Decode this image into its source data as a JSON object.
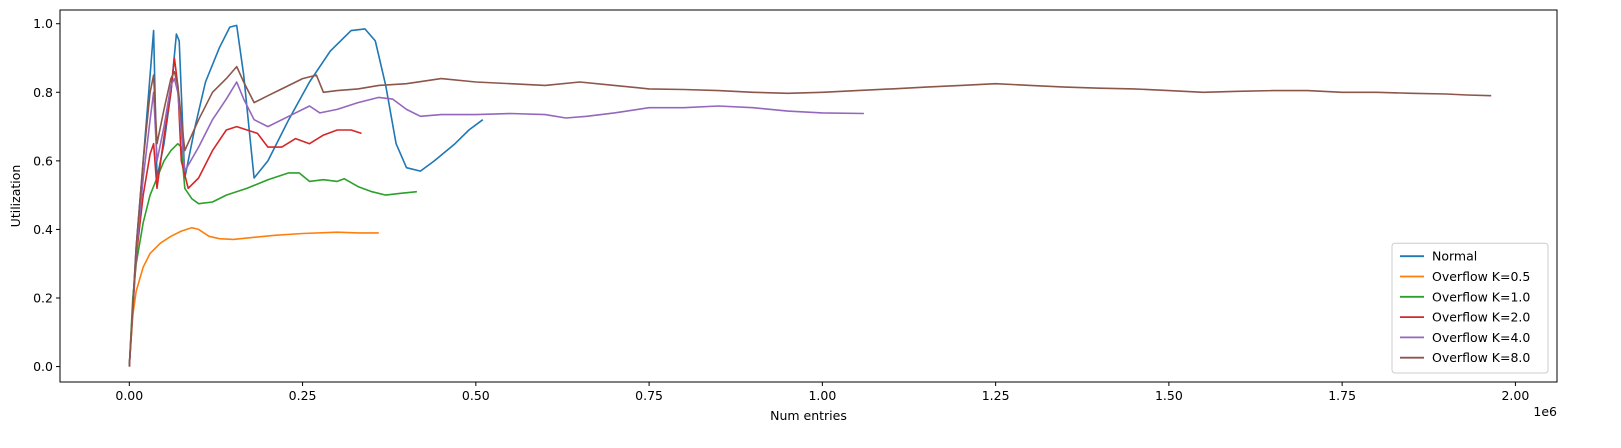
{
  "chart_data": {
    "type": "line",
    "title": "",
    "xlabel": "Num entries",
    "ylabel": "Utilization",
    "x_offset_label": "1e6",
    "xlim": [
      -0.1,
      2.06
    ],
    "ylim": [
      -0.045,
      1.04
    ],
    "x_ticks": [
      0.0,
      0.25,
      0.5,
      0.75,
      1.0,
      1.25,
      1.5,
      1.75,
      2.0
    ],
    "x_tick_labels": [
      "0.00",
      "0.25",
      "0.50",
      "0.75",
      "1.00",
      "1.25",
      "1.50",
      "1.75",
      "2.00"
    ],
    "y_ticks": [
      0.0,
      0.2,
      0.4,
      0.6,
      0.8,
      1.0
    ],
    "y_tick_labels": [
      "0.0",
      "0.2",
      "0.4",
      "0.6",
      "0.8",
      "1.0"
    ],
    "grid": false,
    "legend_position": "lower-right",
    "series": [
      {
        "name": "Normal",
        "color": "#1f77b4",
        "points": [
          [
            0.0,
            0.0
          ],
          [
            0.01,
            0.35
          ],
          [
            0.02,
            0.6
          ],
          [
            0.03,
            0.85
          ],
          [
            0.035,
            0.98
          ],
          [
            0.04,
            0.55
          ],
          [
            0.05,
            0.65
          ],
          [
            0.06,
            0.8
          ],
          [
            0.068,
            0.97
          ],
          [
            0.072,
            0.95
          ],
          [
            0.08,
            0.55
          ],
          [
            0.095,
            0.7
          ],
          [
            0.11,
            0.83
          ],
          [
            0.13,
            0.93
          ],
          [
            0.145,
            0.99
          ],
          [
            0.155,
            0.995
          ],
          [
            0.165,
            0.85
          ],
          [
            0.175,
            0.65
          ],
          [
            0.18,
            0.55
          ],
          [
            0.2,
            0.6
          ],
          [
            0.23,
            0.72
          ],
          [
            0.26,
            0.83
          ],
          [
            0.29,
            0.92
          ],
          [
            0.32,
            0.98
          ],
          [
            0.34,
            0.985
          ],
          [
            0.355,
            0.95
          ],
          [
            0.37,
            0.82
          ],
          [
            0.385,
            0.65
          ],
          [
            0.4,
            0.58
          ],
          [
            0.42,
            0.57
          ],
          [
            0.44,
            0.6
          ],
          [
            0.47,
            0.65
          ],
          [
            0.49,
            0.69
          ],
          [
            0.51,
            0.72
          ]
        ]
      },
      {
        "name": "Overflow K=0.5",
        "color": "#ff7f0e",
        "points": [
          [
            0.0,
            0.0
          ],
          [
            0.005,
            0.15
          ],
          [
            0.01,
            0.22
          ],
          [
            0.02,
            0.29
          ],
          [
            0.03,
            0.33
          ],
          [
            0.045,
            0.36
          ],
          [
            0.06,
            0.38
          ],
          [
            0.075,
            0.395
          ],
          [
            0.09,
            0.405
          ],
          [
            0.1,
            0.4
          ],
          [
            0.115,
            0.38
          ],
          [
            0.13,
            0.373
          ],
          [
            0.15,
            0.371
          ],
          [
            0.18,
            0.377
          ],
          [
            0.21,
            0.383
          ],
          [
            0.25,
            0.388
          ],
          [
            0.3,
            0.392
          ],
          [
            0.33,
            0.39
          ],
          [
            0.36,
            0.39
          ]
        ]
      },
      {
        "name": "Overflow K=1.0",
        "color": "#2ca02c",
        "points": [
          [
            0.0,
            0.0
          ],
          [
            0.005,
            0.2
          ],
          [
            0.01,
            0.3
          ],
          [
            0.02,
            0.42
          ],
          [
            0.03,
            0.5
          ],
          [
            0.04,
            0.55
          ],
          [
            0.05,
            0.6
          ],
          [
            0.06,
            0.63
          ],
          [
            0.07,
            0.65
          ],
          [
            0.075,
            0.64
          ],
          [
            0.08,
            0.52
          ],
          [
            0.09,
            0.49
          ],
          [
            0.1,
            0.475
          ],
          [
            0.12,
            0.48
          ],
          [
            0.14,
            0.5
          ],
          [
            0.17,
            0.52
          ],
          [
            0.2,
            0.545
          ],
          [
            0.23,
            0.565
          ],
          [
            0.245,
            0.565
          ],
          [
            0.26,
            0.54
          ],
          [
            0.28,
            0.545
          ],
          [
            0.3,
            0.54
          ],
          [
            0.31,
            0.548
          ],
          [
            0.33,
            0.525
          ],
          [
            0.35,
            0.51
          ],
          [
            0.37,
            0.5
          ],
          [
            0.39,
            0.505
          ],
          [
            0.415,
            0.51
          ]
        ]
      },
      {
        "name": "Overflow K=2.0",
        "color": "#d62728",
        "points": [
          [
            0.0,
            0.0
          ],
          [
            0.01,
            0.32
          ],
          [
            0.02,
            0.5
          ],
          [
            0.03,
            0.62
          ],
          [
            0.035,
            0.65
          ],
          [
            0.04,
            0.52
          ],
          [
            0.05,
            0.67
          ],
          [
            0.06,
            0.8
          ],
          [
            0.065,
            0.9
          ],
          [
            0.07,
            0.82
          ],
          [
            0.075,
            0.6
          ],
          [
            0.085,
            0.52
          ],
          [
            0.1,
            0.55
          ],
          [
            0.12,
            0.63
          ],
          [
            0.14,
            0.69
          ],
          [
            0.155,
            0.7
          ],
          [
            0.17,
            0.69
          ],
          [
            0.185,
            0.68
          ],
          [
            0.2,
            0.64
          ],
          [
            0.22,
            0.64
          ],
          [
            0.24,
            0.665
          ],
          [
            0.26,
            0.65
          ],
          [
            0.28,
            0.675
          ],
          [
            0.3,
            0.69
          ],
          [
            0.32,
            0.69
          ],
          [
            0.335,
            0.68
          ]
        ]
      },
      {
        "name": "Overflow K=4.0",
        "color": "#9467bd",
        "points": [
          [
            0.0,
            0.0
          ],
          [
            0.01,
            0.33
          ],
          [
            0.02,
            0.55
          ],
          [
            0.03,
            0.72
          ],
          [
            0.035,
            0.8
          ],
          [
            0.04,
            0.6
          ],
          [
            0.05,
            0.7
          ],
          [
            0.06,
            0.82
          ],
          [
            0.065,
            0.84
          ],
          [
            0.07,
            0.8
          ],
          [
            0.08,
            0.57
          ],
          [
            0.1,
            0.64
          ],
          [
            0.12,
            0.72
          ],
          [
            0.14,
            0.78
          ],
          [
            0.155,
            0.83
          ],
          [
            0.165,
            0.78
          ],
          [
            0.18,
            0.72
          ],
          [
            0.2,
            0.7
          ],
          [
            0.23,
            0.73
          ],
          [
            0.26,
            0.76
          ],
          [
            0.275,
            0.74
          ],
          [
            0.3,
            0.75
          ],
          [
            0.33,
            0.77
          ],
          [
            0.36,
            0.785
          ],
          [
            0.38,
            0.78
          ],
          [
            0.4,
            0.75
          ],
          [
            0.42,
            0.73
          ],
          [
            0.45,
            0.735
          ],
          [
            0.5,
            0.735
          ],
          [
            0.55,
            0.738
          ],
          [
            0.6,
            0.735
          ],
          [
            0.63,
            0.725
          ],
          [
            0.66,
            0.73
          ],
          [
            0.7,
            0.74
          ],
          [
            0.75,
            0.755
          ],
          [
            0.8,
            0.755
          ],
          [
            0.85,
            0.76
          ],
          [
            0.9,
            0.755
          ],
          [
            0.95,
            0.745
          ],
          [
            1.0,
            0.74
          ],
          [
            1.06,
            0.738
          ]
        ]
      },
      {
        "name": "Overflow K=8.0",
        "color": "#8c564b",
        "points": [
          [
            0.0,
            0.0
          ],
          [
            0.01,
            0.35
          ],
          [
            0.02,
            0.6
          ],
          [
            0.03,
            0.8
          ],
          [
            0.035,
            0.85
          ],
          [
            0.04,
            0.65
          ],
          [
            0.05,
            0.75
          ],
          [
            0.06,
            0.84
          ],
          [
            0.065,
            0.86
          ],
          [
            0.07,
            0.82
          ],
          [
            0.08,
            0.63
          ],
          [
            0.1,
            0.72
          ],
          [
            0.12,
            0.8
          ],
          [
            0.14,
            0.84
          ],
          [
            0.155,
            0.875
          ],
          [
            0.165,
            0.83
          ],
          [
            0.18,
            0.77
          ],
          [
            0.2,
            0.79
          ],
          [
            0.22,
            0.81
          ],
          [
            0.25,
            0.84
          ],
          [
            0.27,
            0.85
          ],
          [
            0.28,
            0.8
          ],
          [
            0.3,
            0.805
          ],
          [
            0.33,
            0.81
          ],
          [
            0.36,
            0.82
          ],
          [
            0.4,
            0.825
          ],
          [
            0.45,
            0.84
          ],
          [
            0.5,
            0.83
          ],
          [
            0.55,
            0.825
          ],
          [
            0.6,
            0.82
          ],
          [
            0.65,
            0.83
          ],
          [
            0.7,
            0.82
          ],
          [
            0.75,
            0.81
          ],
          [
            0.8,
            0.808
          ],
          [
            0.85,
            0.805
          ],
          [
            0.9,
            0.8
          ],
          [
            0.95,
            0.797
          ],
          [
            1.0,
            0.8
          ],
          [
            1.05,
            0.805
          ],
          [
            1.1,
            0.81
          ],
          [
            1.15,
            0.815
          ],
          [
            1.2,
            0.82
          ],
          [
            1.25,
            0.825
          ],
          [
            1.3,
            0.82
          ],
          [
            1.35,
            0.815
          ],
          [
            1.4,
            0.812
          ],
          [
            1.45,
            0.81
          ],
          [
            1.5,
            0.805
          ],
          [
            1.55,
            0.8
          ],
          [
            1.6,
            0.803
          ],
          [
            1.65,
            0.805
          ],
          [
            1.7,
            0.805
          ],
          [
            1.75,
            0.8
          ],
          [
            1.8,
            0.8
          ],
          [
            1.85,
            0.797
          ],
          [
            1.9,
            0.795
          ],
          [
            1.93,
            0.792
          ],
          [
            1.965,
            0.79
          ]
        ]
      }
    ]
  }
}
